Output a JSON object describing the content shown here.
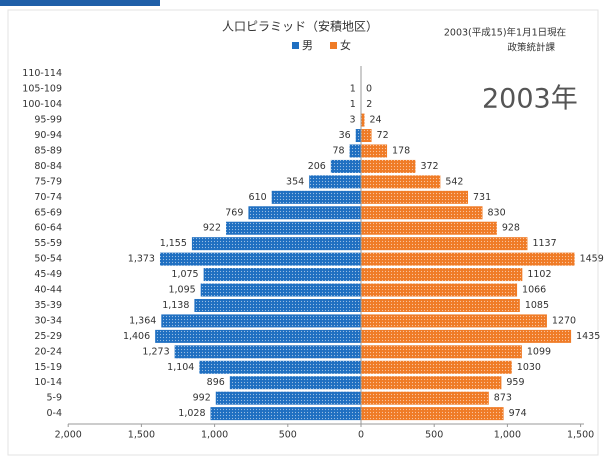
{
  "chart_data": {
    "type": "pyramid",
    "title": "人口ピラミッド（安積地区）",
    "note": "2003(平成15)年1月1日現在",
    "source": "政策統計課",
    "overlay": "2003年",
    "categories": [
      "110-114",
      "105-109",
      "100-104",
      "95-99",
      "90-94",
      "85-89",
      "80-84",
      "75-79",
      "70-74",
      "65-69",
      "60-64",
      "55-59",
      "50-54",
      "45-49",
      "40-44",
      "35-39",
      "30-34",
      "25-29",
      "20-24",
      "15-19",
      "10-14",
      "5-9",
      "0-4"
    ],
    "series": [
      {
        "name": "男",
        "color": "#1f6fc1",
        "side": "left",
        "values": [
          null,
          1,
          1,
          3,
          36,
          78,
          206,
          354,
          610,
          769,
          922,
          1155,
          1373,
          1075,
          1095,
          1138,
          1364,
          1406,
          1273,
          1104,
          896,
          992,
          1028
        ],
        "value_labels": [
          null,
          "1",
          "1",
          "3",
          "36",
          "78",
          "206",
          "354",
          "610",
          "769",
          "922",
          "1,155",
          "1,373",
          "1,075",
          "1,095",
          "1,138",
          "1,364",
          "1,406",
          "1,273",
          "1,104",
          "896",
          "992",
          "1,028"
        ]
      },
      {
        "name": "女",
        "color": "#ef7b26",
        "side": "right",
        "values": [
          null,
          0,
          2,
          24,
          72,
          178,
          372,
          542,
          731,
          830,
          928,
          1137,
          1459,
          1102,
          1066,
          1085,
          1270,
          1435,
          1099,
          1030,
          959,
          873,
          974
        ]
      }
    ],
    "xlim_left": [
      0,
      2000
    ],
    "xticks_left": [
      {
        "value": 2000,
        "label": "2,000"
      },
      {
        "value": 1500,
        "label": "1,500"
      },
      {
        "value": 1000,
        "label": "1,000"
      },
      500
    ],
    "xlim_right": [
      0,
      1500
    ],
    "xticks_right": [
      0,
      500,
      {
        "value": 1000,
        "label": "1,000"
      },
      {
        "value": 1500,
        "label": "1,500"
      }
    ]
  }
}
